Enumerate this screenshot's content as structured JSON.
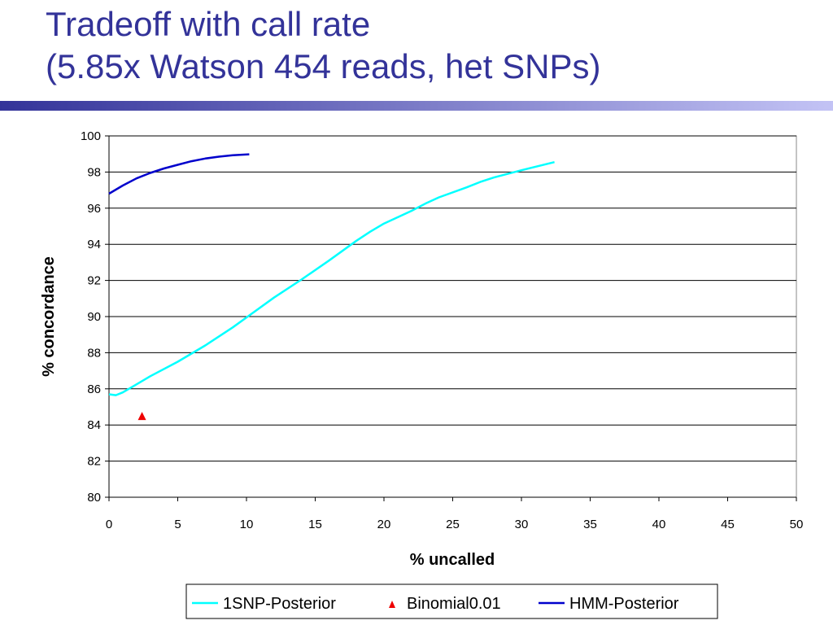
{
  "slide": {
    "title_line1": "Tradeoff with call rate",
    "title_line2": "(5.85x Watson 454 reads, het SNPs)",
    "title_color": "#333399",
    "rule_colors": [
      "#333399",
      "#c3c3f5"
    ]
  },
  "chart_data": {
    "type": "line",
    "title": "",
    "xlabel": "% uncalled",
    "ylabel": "% concordance",
    "xlim": [
      0,
      50
    ],
    "ylim": [
      80,
      100
    ],
    "xticks": [
      0,
      5,
      10,
      15,
      20,
      25,
      30,
      35,
      40,
      45,
      50
    ],
    "yticks": [
      80,
      82,
      84,
      86,
      88,
      90,
      92,
      94,
      96,
      98,
      100
    ],
    "grid": "horizontal",
    "legend_position": "bottom",
    "series": [
      {
        "name": "1SNP-Posterior",
        "style": "line",
        "color": "#00ffff",
        "x": [
          0,
          0.5,
          1,
          2,
          3,
          5,
          7,
          9,
          10,
          12,
          14,
          16,
          18,
          19,
          20,
          22,
          23,
          24,
          26,
          27,
          28,
          30,
          32.4
        ],
        "y": [
          85.7,
          85.65,
          85.8,
          86.25,
          86.7,
          87.5,
          88.4,
          89.4,
          89.95,
          91.05,
          92.05,
          93.1,
          94.2,
          94.7,
          95.15,
          95.85,
          96.25,
          96.6,
          97.15,
          97.45,
          97.7,
          98.1,
          98.55
        ]
      },
      {
        "name": "Binomial0.01",
        "style": "marker",
        "marker": "triangle",
        "color": "#ee0000",
        "x": [
          2.4
        ],
        "y": [
          84.5
        ]
      },
      {
        "name": "HMM-Posterior",
        "style": "line",
        "color": "#0000cc",
        "x": [
          0,
          1,
          2,
          3,
          4,
          5,
          6,
          7,
          8,
          9,
          10.2
        ],
        "y": [
          96.8,
          97.25,
          97.65,
          97.95,
          98.2,
          98.4,
          98.6,
          98.75,
          98.85,
          98.93,
          98.98
        ]
      }
    ]
  }
}
